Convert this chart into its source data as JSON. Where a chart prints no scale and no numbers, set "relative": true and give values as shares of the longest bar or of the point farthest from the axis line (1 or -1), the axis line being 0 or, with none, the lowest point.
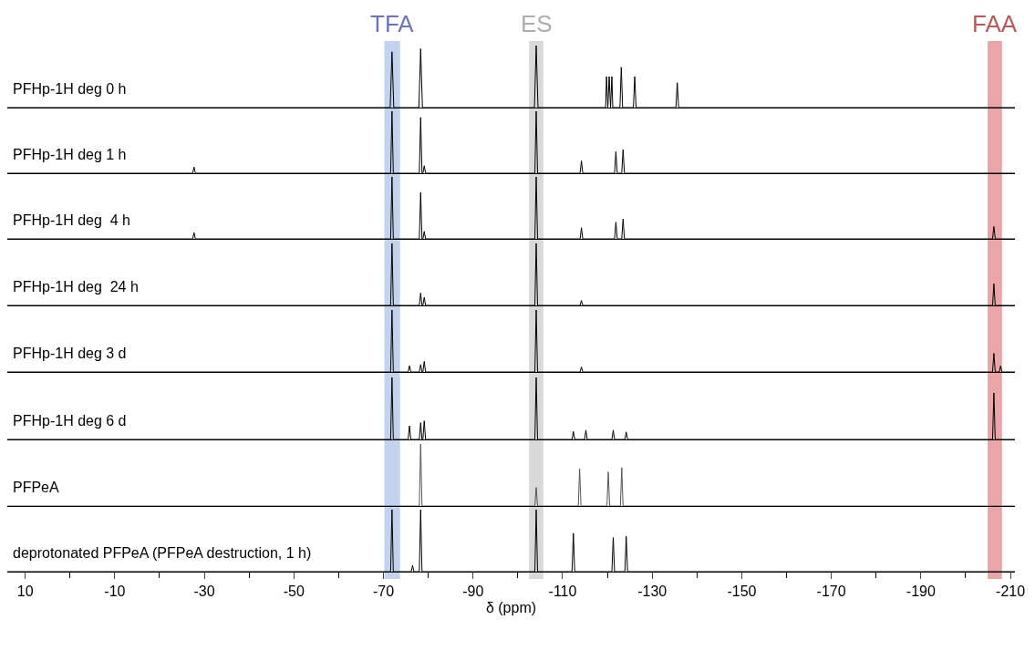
{
  "chart_data": [
    {
      "type": "line",
      "relative": true,
      "xlim": [
        14,
        -211
      ],
      "tick_labels": false,
      "marker": "none",
      "grid": false,
      "bands": [
        {
          "axis": "x",
          "from": -70.2,
          "to": -73.7,
          "label": "TFA",
          "color": "#c3d3ee"
        },
        {
          "axis": "x",
          "from": -102.5,
          "to": -105.7,
          "label": "ES",
          "color": "#d9d9d9"
        },
        {
          "axis": "x",
          "from": -204.9,
          "to": -208.1,
          "label": "FAA",
          "color": "#e9a5a8"
        }
      ],
      "series": [
        {
          "name": "PFHp-1H deg 0 h",
          "color": "#000000",
          "x": [
            14,
            -71.5,
            -71.9,
            -72.3,
            -77.9,
            -78.3,
            -78.7,
            -103.7,
            -104.1,
            -104.5,
            -119.6,
            -119.8,
            -120.1,
            -120.4,
            -120.7,
            -121.0,
            -121.2,
            -122.8,
            -123.1,
            -123.4,
            -125.8,
            -126.1,
            -126.4,
            -135.3,
            -135.6,
            -135.9,
            -211
          ],
          "values": [
            0,
            0,
            0.9,
            0,
            0,
            0.95,
            0,
            0,
            1,
            0,
            0,
            0.5,
            0,
            0.5,
            0,
            0.5,
            0,
            0,
            0.65,
            0,
            0,
            0.5,
            0,
            0,
            0.4,
            0,
            0
          ]
        }
      ]
    },
    {
      "type": "line",
      "relative": true,
      "xlim": [
        14,
        -211
      ],
      "tick_labels": false,
      "marker": "none",
      "grid": false,
      "bands": [
        {
          "axis": "x",
          "from": -70.2,
          "to": -73.7,
          "color": "#c3d3ee"
        },
        {
          "axis": "x",
          "from": -102.5,
          "to": -105.7,
          "color": "#d9d9d9"
        },
        {
          "axis": "x",
          "from": -204.9,
          "to": -208.1,
          "color": "#e9a5a8"
        }
      ],
      "series": [
        {
          "name": "PFHp-1H deg 1 h",
          "color": "#000000",
          "x": [
            14,
            -27.4,
            -27.7,
            -28.0,
            -71.6,
            -71.9,
            -72.2,
            -78.0,
            -78.3,
            -78.6,
            -78.8,
            -79.1,
            -79.4,
            -103.8,
            -104.1,
            -104.4,
            -113.9,
            -114.2,
            -114.5,
            -121.6,
            -121.9,
            -122.2,
            -123.2,
            -123.5,
            -123.8,
            -211
          ],
          "values": [
            0,
            0,
            0.1,
            0,
            0,
            1,
            0,
            0,
            0.9,
            0,
            0,
            0.12,
            0,
            0,
            1,
            0,
            0,
            0.2,
            0,
            0,
            0.35,
            0,
            0,
            0.38,
            0,
            0
          ]
        }
      ]
    },
    {
      "type": "line",
      "relative": true,
      "xlim": [
        14,
        -211
      ],
      "tick_labels": false,
      "marker": "none",
      "grid": false,
      "bands": [
        {
          "axis": "x",
          "from": -70.2,
          "to": -73.7,
          "color": "#c3d3ee"
        },
        {
          "axis": "x",
          "from": -102.5,
          "to": -105.7,
          "color": "#d9d9d9"
        },
        {
          "axis": "x",
          "from": -204.9,
          "to": -208.1,
          "color": "#e9a5a8"
        }
      ],
      "series": [
        {
          "name": "PFHp-1H deg  4 h",
          "color": "#000000",
          "x": [
            14,
            -27.4,
            -27.7,
            -28.0,
            -71.6,
            -71.9,
            -72.2,
            -78.0,
            -78.3,
            -78.6,
            -78.8,
            -79.1,
            -79.4,
            -103.8,
            -104.1,
            -104.4,
            -113.9,
            -114.2,
            -114.5,
            -121.6,
            -121.9,
            -122.2,
            -123.2,
            -123.5,
            -123.8,
            -206.0,
            -206.3,
            -206.6,
            -211
          ],
          "values": [
            0,
            0,
            0.1,
            0,
            0,
            1,
            0,
            0,
            0.75,
            0,
            0,
            0.12,
            0,
            0,
            1,
            0,
            0,
            0.18,
            0,
            0,
            0.27,
            0,
            0,
            0.32,
            0,
            0,
            0.2,
            0,
            0
          ]
        }
      ]
    },
    {
      "type": "line",
      "relative": true,
      "xlim": [
        14,
        -211
      ],
      "tick_labels": false,
      "marker": "none",
      "grid": false,
      "bands": [
        {
          "axis": "x",
          "from": -70.2,
          "to": -73.7,
          "color": "#c3d3ee"
        },
        {
          "axis": "x",
          "from": -102.5,
          "to": -105.7,
          "color": "#d9d9d9"
        },
        {
          "axis": "x",
          "from": -204.9,
          "to": -208.1,
          "color": "#e9a5a8"
        }
      ],
      "series": [
        {
          "name": "PFHp-1H deg  24 h",
          "color": "#000000",
          "x": [
            14,
            -71.6,
            -71.9,
            -72.2,
            -78.0,
            -78.3,
            -78.6,
            -78.8,
            -79.1,
            -79.4,
            -103.8,
            -104.1,
            -104.4,
            -113.9,
            -114.2,
            -114.5,
            -206.0,
            -206.3,
            -206.6,
            -211
          ],
          "values": [
            0,
            0,
            1,
            0,
            0,
            0.2,
            0,
            0,
            0.13,
            0,
            0,
            1,
            0,
            0,
            0.08,
            0,
            0,
            0.35,
            0,
            0
          ]
        }
      ]
    },
    {
      "type": "line",
      "relative": true,
      "xlim": [
        14,
        -211
      ],
      "tick_labels": false,
      "marker": "none",
      "grid": false,
      "bands": [
        {
          "axis": "x",
          "from": -70.2,
          "to": -73.7,
          "color": "#c3d3ee"
        },
        {
          "axis": "x",
          "from": -102.5,
          "to": -105.7,
          "color": "#d9d9d9"
        },
        {
          "axis": "x",
          "from": -204.9,
          "to": -208.1,
          "color": "#e9a5a8"
        }
      ],
      "series": [
        {
          "name": "PFHp-1H deg 3 d",
          "color": "#000000",
          "x": [
            14,
            -71.6,
            -71.9,
            -72.2,
            -75.5,
            -75.8,
            -76.1,
            -78.0,
            -78.3,
            -78.6,
            -78.8,
            -79.1,
            -79.4,
            -103.8,
            -104.1,
            -104.4,
            -113.9,
            -114.2,
            -114.5,
            -206.0,
            -206.3,
            -206.6,
            -207.5,
            -207.8,
            -208.1,
            -211
          ],
          "values": [
            0,
            0,
            1,
            0,
            0,
            0.1,
            0,
            0,
            0.12,
            0,
            0,
            0.17,
            0,
            0,
            1,
            0,
            0,
            0.08,
            0,
            0,
            0.3,
            0,
            0,
            0.1,
            0,
            0
          ]
        }
      ]
    },
    {
      "type": "line",
      "relative": true,
      "xlim": [
        14,
        -211
      ],
      "tick_labels": false,
      "marker": "none",
      "grid": false,
      "bands": [
        {
          "axis": "x",
          "from": -70.2,
          "to": -73.7,
          "color": "#c3d3ee"
        },
        {
          "axis": "x",
          "from": -102.5,
          "to": -105.7,
          "color": "#d9d9d9"
        },
        {
          "axis": "x",
          "from": -204.9,
          "to": -208.1,
          "color": "#e9a5a8"
        }
      ],
      "series": [
        {
          "name": "PFHp-1H deg 6 d",
          "color": "#000000",
          "x": [
            14,
            -71.6,
            -71.9,
            -72.2,
            -75.5,
            -75.8,
            -76.1,
            -78.0,
            -78.3,
            -78.6,
            -78.8,
            -79.1,
            -79.4,
            -103.8,
            -104.1,
            -104.4,
            -112.1,
            -112.4,
            -112.7,
            -114.9,
            -115.2,
            -115.5,
            -121.0,
            -121.3,
            -121.6,
            -123.9,
            -124.2,
            -124.5,
            -206.0,
            -206.3,
            -206.6,
            -211
          ],
          "values": [
            0,
            0,
            1,
            0,
            0,
            0.22,
            0,
            0,
            0.27,
            0,
            0,
            0.3,
            0,
            0,
            1,
            0,
            0,
            0.13,
            0,
            0,
            0.15,
            0,
            0,
            0.15,
            0,
            0,
            0.12,
            0,
            0,
            0.75,
            0,
            0
          ]
        }
      ]
    },
    {
      "type": "line",
      "relative": true,
      "xlim": [
        14,
        -211
      ],
      "tick_labels": false,
      "marker": "none",
      "grid": false,
      "bands": [
        {
          "axis": "x",
          "from": -70.2,
          "to": -73.7,
          "color": "#c3d3ee"
        },
        {
          "axis": "x",
          "from": -102.5,
          "to": -105.7,
          "color": "#d9d9d9"
        },
        {
          "axis": "x",
          "from": -204.9,
          "to": -208.1,
          "color": "#e9a5a8"
        }
      ],
      "series": [
        {
          "name": "PFPeA",
          "color": "#555555",
          "x": [
            14,
            -78.0,
            -78.3,
            -78.6,
            -103.8,
            -104.1,
            -104.4,
            -113.5,
            -113.8,
            -114.1,
            -119.9,
            -120.2,
            -120.5,
            -122.9,
            -123.2,
            -123.5,
            -211
          ],
          "values": [
            0,
            0,
            1,
            0,
            0,
            0.3,
            0,
            0,
            0.6,
            0,
            0,
            0.55,
            0,
            0,
            0.62,
            0,
            0
          ]
        }
      ]
    },
    {
      "type": "line",
      "relative": true,
      "xlim": [
        14,
        -211
      ],
      "tick_labels": "x",
      "marker": "none",
      "grid": false,
      "xlabel": "δ (ppm)",
      "bands": [
        {
          "axis": "x",
          "from": -70.2,
          "to": -73.7,
          "color": "#c3d3ee"
        },
        {
          "axis": "x",
          "from": -102.5,
          "to": -105.7,
          "color": "#d9d9d9"
        },
        {
          "axis": "x",
          "from": -204.9,
          "to": -208.1,
          "color": "#e9a5a8"
        }
      ],
      "xticks": [
        10,
        {
          "value": 0,
          "label": null
        },
        -10,
        {
          "value": -20,
          "label": null
        },
        -30,
        {
          "value": -40,
          "label": null
        },
        -50,
        {
          "value": -60,
          "label": null
        },
        -70,
        {
          "value": -80,
          "label": null
        },
        -90,
        {
          "value": -100,
          "label": null
        },
        -110,
        {
          "value": -120,
          "label": null
        },
        -130,
        {
          "value": -140,
          "label": null
        },
        -150,
        {
          "value": -160,
          "label": null
        },
        -170,
        {
          "value": -180,
          "label": null
        },
        -190,
        {
          "value": -200,
          "label": null
        },
        -210
      ],
      "series": [
        {
          "name": "deprotonated PFPeA (PFPeA destruction, 1 h)",
          "color": "#000000",
          "x": [
            14,
            -71.6,
            -71.9,
            -72.2,
            -76.2,
            -76.5,
            -76.8,
            -78.0,
            -78.3,
            -78.6,
            -103.8,
            -104.1,
            -104.4,
            -112.1,
            -112.4,
            -112.7,
            -121.0,
            -121.3,
            -121.6,
            -123.9,
            -124.2,
            -124.5,
            -211
          ],
          "values": [
            0,
            0,
            1,
            0,
            0,
            0.1,
            0,
            0,
            1,
            0,
            0,
            1,
            0,
            0,
            0.62,
            0,
            0,
            0.55,
            0,
            0,
            0.57,
            0,
            0
          ]
        }
      ]
    }
  ]
}
